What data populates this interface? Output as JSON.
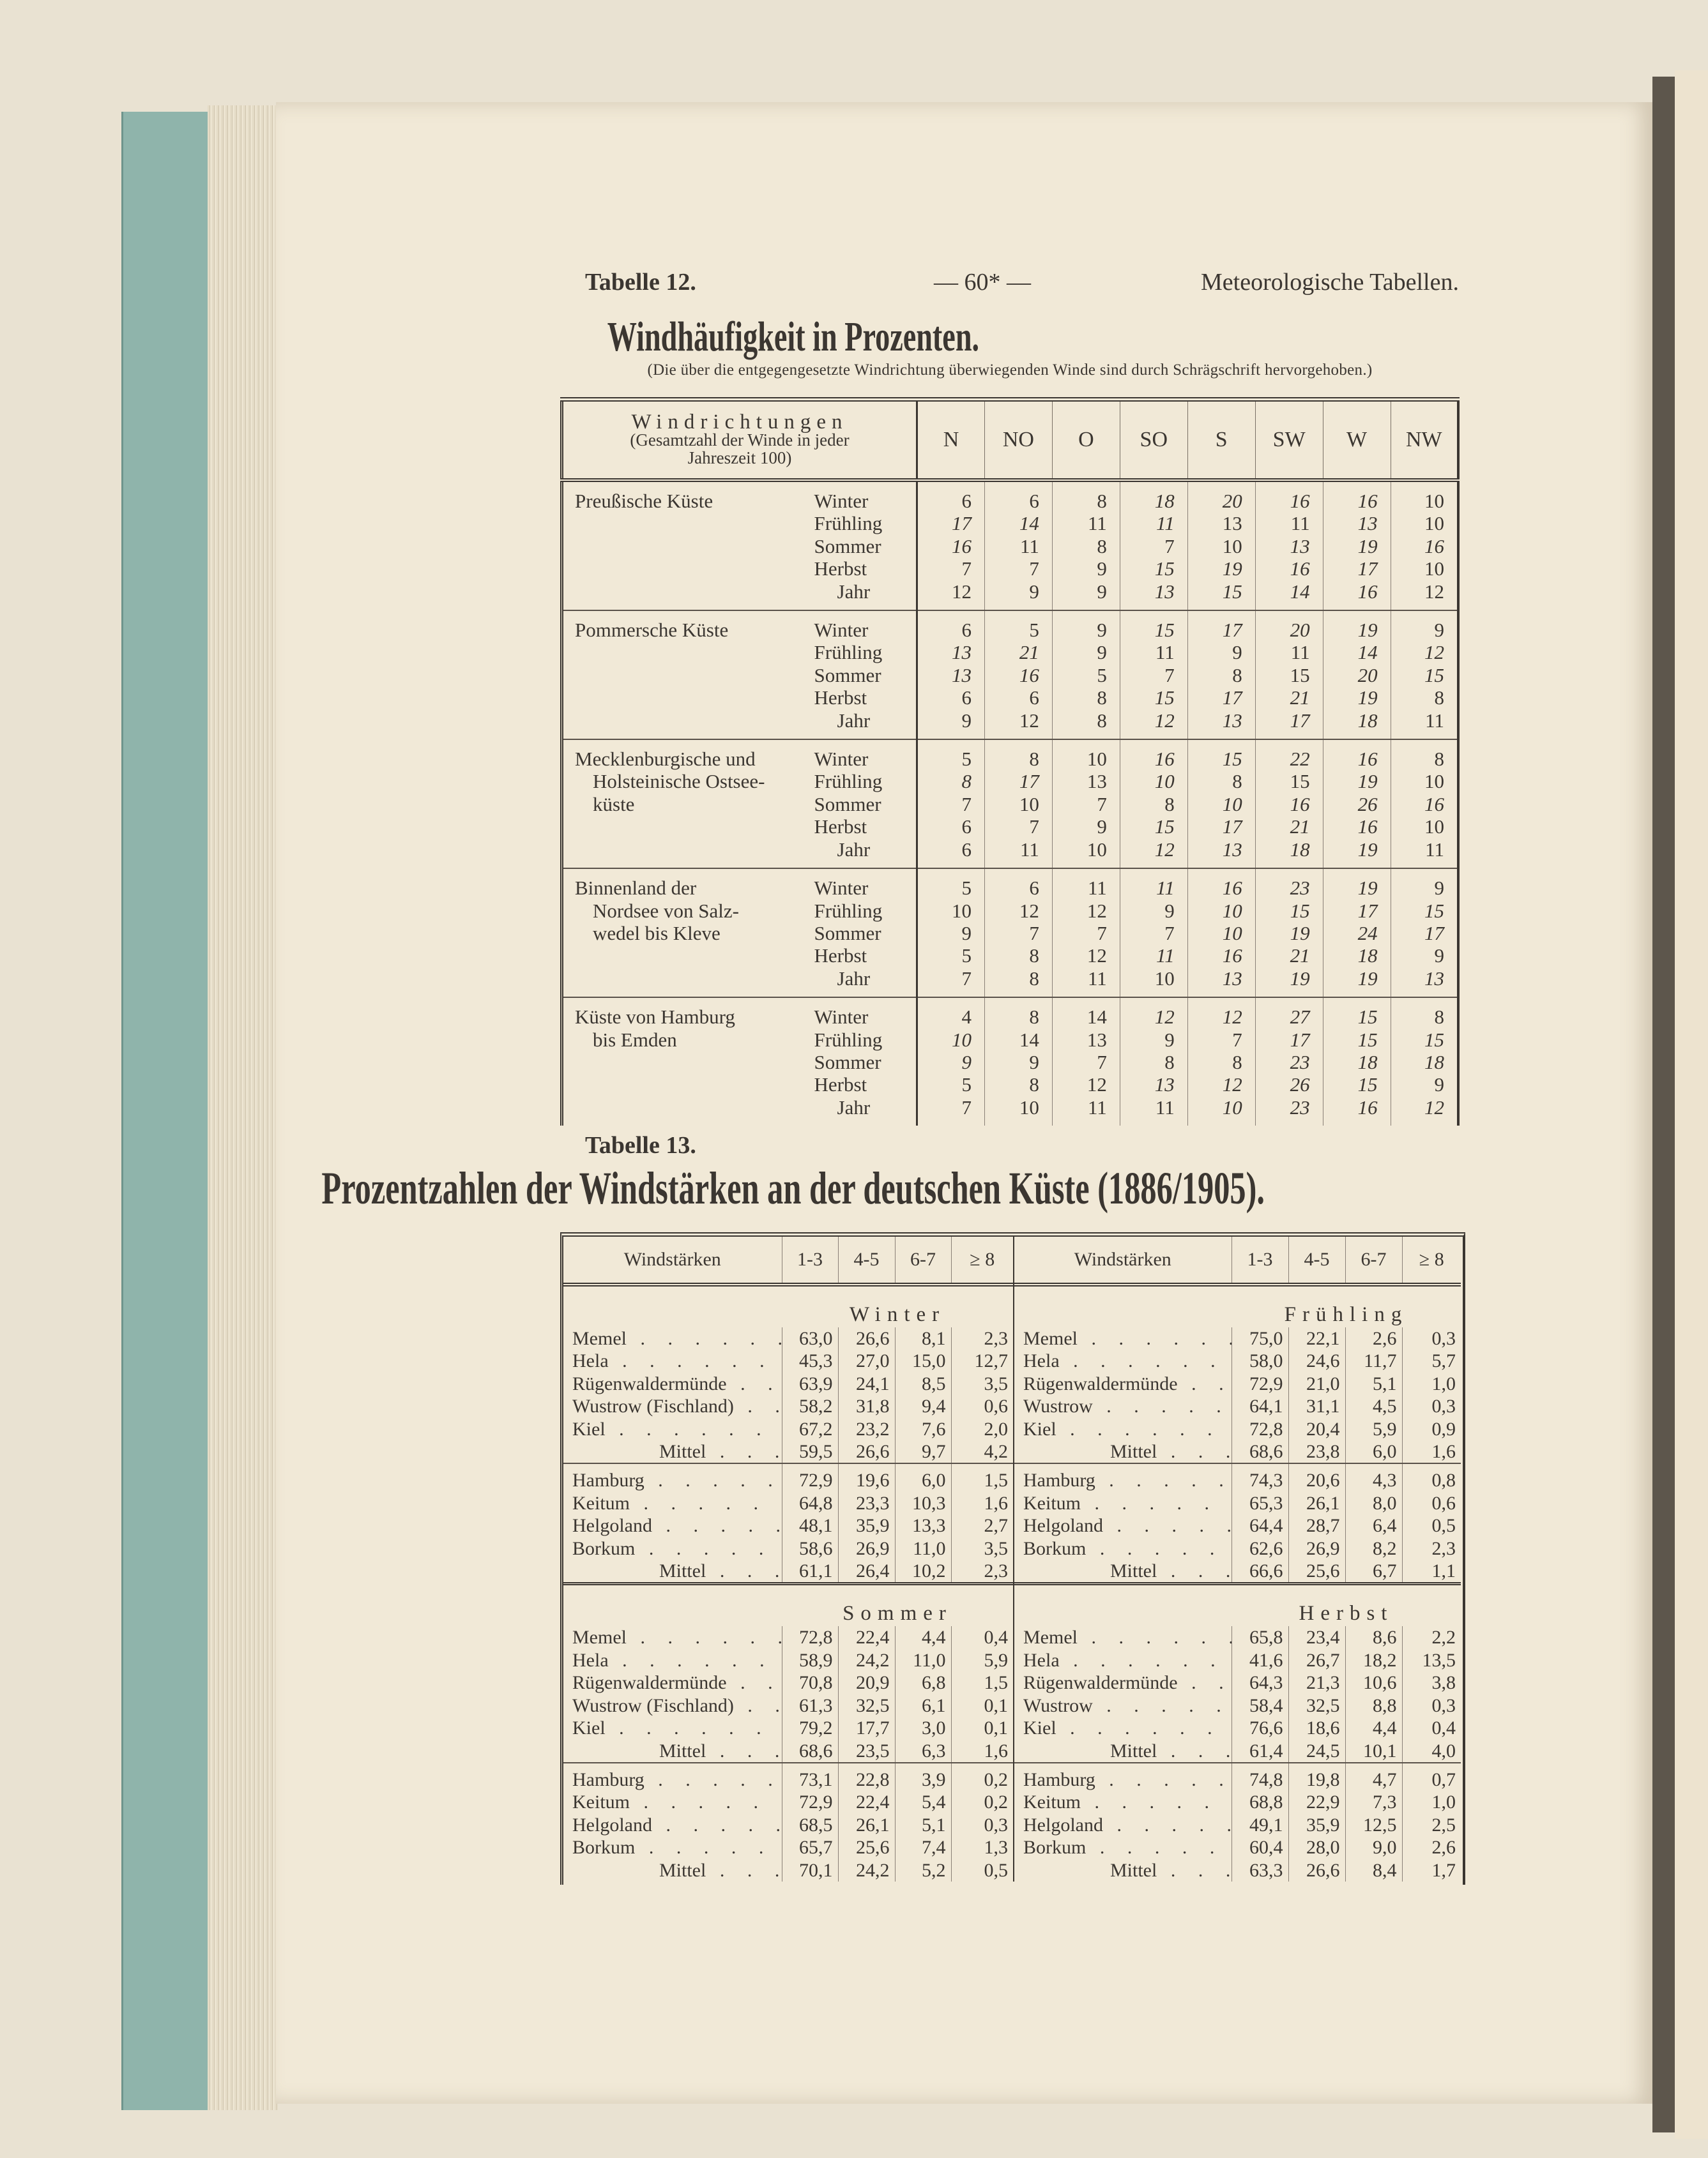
{
  "header": {
    "table_label": "Tabelle 12.",
    "page_number": "— 60* —",
    "running_title": "Meteorologische Tabellen."
  },
  "table12": {
    "title": "Windhäufigkeit in Prozenten.",
    "note": "(Die über die entgegengesetzte Windrichtung überwiegenden Winde sind durch Schrägschrift hervorgehoben.)",
    "header_label": {
      "line1": "Windrichtungen",
      "line2": "(Gesamtzahl der Winde in jeder",
      "line3": "Jahreszeit 100)"
    },
    "directions": [
      "N",
      "NO",
      "O",
      "SO",
      "S",
      "SW",
      "W",
      "NW"
    ],
    "seasons": [
      "Winter",
      "Frühling",
      "Sommer",
      "Herbst",
      "Jahr"
    ],
    "regions": [
      {
        "name": [
          "Preußische Küste"
        ],
        "rows": [
          {
            "v": [
              6,
              6,
              8,
              18,
              20,
              16,
              16,
              10
            ],
            "italic": [
              3,
              4,
              5,
              6
            ]
          },
          {
            "v": [
              17,
              14,
              11,
              11,
              13,
              11,
              13,
              10
            ],
            "italic": [
              0,
              1,
              3,
              6
            ]
          },
          {
            "v": [
              16,
              11,
              8,
              7,
              10,
              13,
              19,
              16
            ],
            "italic": [
              0,
              5,
              6,
              7
            ]
          },
          {
            "v": [
              7,
              7,
              9,
              15,
              19,
              16,
              17,
              10
            ],
            "italic": [
              3,
              4,
              5,
              6
            ]
          },
          {
            "v": [
              12,
              9,
              9,
              13,
              15,
              14,
              16,
              12
            ],
            "italic": [
              3,
              4,
              5,
              6
            ]
          }
        ]
      },
      {
        "name": [
          "Pommersche Küste"
        ],
        "rows": [
          {
            "v": [
              6,
              5,
              9,
              15,
              17,
              20,
              19,
              9
            ],
            "italic": [
              3,
              4,
              5,
              6
            ]
          },
          {
            "v": [
              13,
              21,
              9,
              11,
              9,
              11,
              14,
              12
            ],
            "italic": [
              0,
              1,
              6,
              7
            ]
          },
          {
            "v": [
              13,
              16,
              5,
              7,
              8,
              15,
              20,
              15
            ],
            "italic": [
              0,
              1,
              6,
              7
            ]
          },
          {
            "v": [
              6,
              6,
              8,
              15,
              17,
              21,
              19,
              8
            ],
            "italic": [
              3,
              4,
              5,
              6
            ]
          },
          {
            "v": [
              9,
              12,
              8,
              12,
              13,
              17,
              18,
              11
            ],
            "italic": [
              3,
              4,
              5,
              6
            ]
          }
        ]
      },
      {
        "name": [
          "Mecklenburgische und",
          "Holsteinische Ostsee-",
          "küste"
        ],
        "rows": [
          {
            "v": [
              5,
              8,
              10,
              16,
              15,
              22,
              16,
              8
            ],
            "italic": [
              3,
              4,
              5,
              6
            ]
          },
          {
            "v": [
              8,
              17,
              13,
              10,
              8,
              15,
              19,
              10
            ],
            "italic": [
              0,
              1,
              3,
              6
            ]
          },
          {
            "v": [
              7,
              10,
              7,
              8,
              10,
              16,
              26,
              16
            ],
            "italic": [
              4,
              5,
              6,
              7
            ]
          },
          {
            "v": [
              6,
              7,
              9,
              15,
              17,
              21,
              16,
              10
            ],
            "italic": [
              3,
              4,
              5,
              6
            ]
          },
          {
            "v": [
              6,
              11,
              10,
              12,
              13,
              18,
              19,
              11
            ],
            "italic": [
              3,
              4,
              5,
              6
            ]
          }
        ]
      },
      {
        "name": [
          "Binnenland der",
          "Nordsee von Salz-",
          "wedel bis Kleve"
        ],
        "rows": [
          {
            "v": [
              5,
              6,
              11,
              11,
              16,
              23,
              19,
              9
            ],
            "italic": [
              3,
              4,
              5,
              6
            ]
          },
          {
            "v": [
              10,
              12,
              12,
              9,
              10,
              15,
              17,
              15
            ],
            "italic": [
              4,
              5,
              6,
              7
            ]
          },
          {
            "v": [
              9,
              7,
              7,
              7,
              10,
              19,
              24,
              17
            ],
            "italic": [
              4,
              5,
              6,
              7
            ]
          },
          {
            "v": [
              5,
              8,
              12,
              11,
              16,
              21,
              18,
              9
            ],
            "italic": [
              3,
              4,
              5,
              6
            ]
          },
          {
            "v": [
              7,
              8,
              11,
              10,
              13,
              19,
              19,
              13
            ],
            "italic": [
              4,
              5,
              6,
              7
            ]
          }
        ]
      },
      {
        "name": [
          "Küste von Hamburg",
          "bis Emden"
        ],
        "rows": [
          {
            "v": [
              4,
              8,
              14,
              12,
              12,
              27,
              15,
              8
            ],
            "italic": [
              3,
              4,
              5,
              6
            ]
          },
          {
            "v": [
              10,
              14,
              13,
              9,
              7,
              17,
              15,
              15
            ],
            "italic": [
              0,
              5,
              6,
              7
            ]
          },
          {
            "v": [
              9,
              9,
              7,
              8,
              8,
              23,
              18,
              18
            ],
            "italic": [
              0,
              5,
              6,
              7
            ]
          },
          {
            "v": [
              5,
              8,
              12,
              13,
              12,
              26,
              15,
              9
            ],
            "italic": [
              3,
              4,
              5,
              6
            ]
          },
          {
            "v": [
              7,
              10,
              11,
              11,
              10,
              23,
              16,
              12
            ],
            "italic": [
              4,
              5,
              6,
              7
            ]
          }
        ]
      }
    ]
  },
  "table13": {
    "label": "Tabelle 13.",
    "title": "Prozentzahlen der Windstärken an der deutschen Küste (1886/1905).",
    "header_label": "Windstärken",
    "columns": [
      "1-3",
      "4-5",
      "6-7",
      "≥ 8"
    ],
    "left": [
      {
        "season": "Winter",
        "groups": [
          [
            {
              "name": "Memel",
              "v": [
                "63,0",
                "26,6",
                "8,1",
                "2,3"
              ]
            },
            {
              "name": "Hela",
              "v": [
                "45,3",
                "27,0",
                "15,0",
                "12,7"
              ]
            },
            {
              "name": "Rügenwaldermünde",
              "v": [
                "63,9",
                "24,1",
                "8,5",
                "3,5"
              ]
            },
            {
              "name": "Wustrow (Fischland)",
              "v": [
                "58,2",
                "31,8",
                "9,4",
                "0,6"
              ]
            },
            {
              "name": "Kiel",
              "v": [
                "67,2",
                "23,2",
                "7,6",
                "2,0"
              ]
            },
            {
              "name": "Mittel",
              "mittel": true,
              "v": [
                "59,5",
                "26,6",
                "9,7",
                "4,2"
              ]
            }
          ],
          [
            {
              "name": "Hamburg",
              "v": [
                "72,9",
                "19,6",
                "6,0",
                "1,5"
              ]
            },
            {
              "name": "Keitum",
              "v": [
                "64,8",
                "23,3",
                "10,3",
                "1,6"
              ]
            },
            {
              "name": "Helgoland",
              "v": [
                "48,1",
                "35,9",
                "13,3",
                "2,7"
              ]
            },
            {
              "name": "Borkum",
              "v": [
                "58,6",
                "26,9",
                "11,0",
                "3,5"
              ]
            },
            {
              "name": "Mittel",
              "mittel": true,
              "v": [
                "61,1",
                "26,4",
                "10,2",
                "2,3"
              ]
            }
          ]
        ]
      },
      {
        "season": "Sommer",
        "groups": [
          [
            {
              "name": "Memel",
              "v": [
                "72,8",
                "22,4",
                "4,4",
                "0,4"
              ]
            },
            {
              "name": "Hela",
              "v": [
                "58,9",
                "24,2",
                "11,0",
                "5,9"
              ]
            },
            {
              "name": "Rügenwaldermünde",
              "v": [
                "70,8",
                "20,9",
                "6,8",
                "1,5"
              ]
            },
            {
              "name": "Wustrow (Fischland)",
              "v": [
                "61,3",
                "32,5",
                "6,1",
                "0,1"
              ]
            },
            {
              "name": "Kiel",
              "v": [
                "79,2",
                "17,7",
                "3,0",
                "0,1"
              ]
            },
            {
              "name": "Mittel",
              "mittel": true,
              "v": [
                "68,6",
                "23,5",
                "6,3",
                "1,6"
              ]
            }
          ],
          [
            {
              "name": "Hamburg",
              "v": [
                "73,1",
                "22,8",
                "3,9",
                "0,2"
              ]
            },
            {
              "name": "Keitum",
              "v": [
                "72,9",
                "22,4",
                "5,4",
                "0,2"
              ]
            },
            {
              "name": "Helgoland",
              "v": [
                "68,5",
                "26,1",
                "5,1",
                "0,3"
              ]
            },
            {
              "name": "Borkum",
              "v": [
                "65,7",
                "25,6",
                "7,4",
                "1,3"
              ]
            },
            {
              "name": "Mittel",
              "mittel": true,
              "v": [
                "70,1",
                "24,2",
                "5,2",
                "0,5"
              ]
            }
          ]
        ]
      }
    ],
    "right": [
      {
        "season": "Frühling",
        "groups": [
          [
            {
              "name": "Memel",
              "v": [
                "75,0",
                "22,1",
                "2,6",
                "0,3"
              ]
            },
            {
              "name": "Hela",
              "v": [
                "58,0",
                "24,6",
                "11,7",
                "5,7"
              ]
            },
            {
              "name": "Rügenwaldermünde",
              "v": [
                "72,9",
                "21,0",
                "5,1",
                "1,0"
              ]
            },
            {
              "name": "Wustrow",
              "v": [
                "64,1",
                "31,1",
                "4,5",
                "0,3"
              ]
            },
            {
              "name": "Kiel",
              "v": [
                "72,8",
                "20,4",
                "5,9",
                "0,9"
              ]
            },
            {
              "name": "Mittel",
              "mittel": true,
              "v": [
                "68,6",
                "23,8",
                "6,0",
                "1,6"
              ]
            }
          ],
          [
            {
              "name": "Hamburg",
              "v": [
                "74,3",
                "20,6",
                "4,3",
                "0,8"
              ]
            },
            {
              "name": "Keitum",
              "v": [
                "65,3",
                "26,1",
                "8,0",
                "0,6"
              ]
            },
            {
              "name": "Helgoland",
              "v": [
                "64,4",
                "28,7",
                "6,4",
                "0,5"
              ]
            },
            {
              "name": "Borkum",
              "v": [
                "62,6",
                "26,9",
                "8,2",
                "2,3"
              ]
            },
            {
              "name": "Mittel",
              "mittel": true,
              "v": [
                "66,6",
                "25,6",
                "6,7",
                "1,1"
              ]
            }
          ]
        ]
      },
      {
        "season": "Herbst",
        "groups": [
          [
            {
              "name": "Memel",
              "v": [
                "65,8",
                "23,4",
                "8,6",
                "2,2"
              ]
            },
            {
              "name": "Hela",
              "v": [
                "41,6",
                "26,7",
                "18,2",
                "13,5"
              ]
            },
            {
              "name": "Rügenwaldermünde",
              "v": [
                "64,3",
                "21,3",
                "10,6",
                "3,8"
              ]
            },
            {
              "name": "Wustrow",
              "v": [
                "58,4",
                "32,5",
                "8,8",
                "0,3"
              ]
            },
            {
              "name": "Kiel",
              "v": [
                "76,6",
                "18,6",
                "4,4",
                "0,4"
              ]
            },
            {
              "name": "Mittel",
              "mittel": true,
              "v": [
                "61,4",
                "24,5",
                "10,1",
                "4,0"
              ]
            }
          ],
          [
            {
              "name": "Hamburg",
              "v": [
                "74,8",
                "19,8",
                "4,7",
                "0,7"
              ]
            },
            {
              "name": "Keitum",
              "v": [
                "68,8",
                "22,9",
                "7,3",
                "1,0"
              ]
            },
            {
              "name": "Helgoland",
              "v": [
                "49,1",
                "35,9",
                "12,5",
                "2,5"
              ]
            },
            {
              "name": "Borkum",
              "v": [
                "60,4",
                "28,0",
                "9,0",
                "2,6"
              ]
            },
            {
              "name": "Mittel",
              "mittel": true,
              "v": [
                "63,3",
                "26,6",
                "8,4",
                "1,7"
              ]
            }
          ]
        ]
      }
    ]
  }
}
